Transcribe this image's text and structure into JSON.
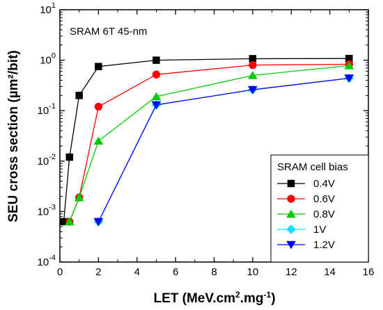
{
  "chart_data": {
    "type": "line",
    "annotation": "SRAM 6T 45-nm",
    "xlabel": {
      "main": "LET (MeV.cm",
      "sup1": "2",
      "mid": ".mg",
      "sup2": "-1",
      "end": ")"
    },
    "ylabel": {
      "main": "SEU cross section (µm²/bit)"
    },
    "xlim": [
      0,
      16
    ],
    "ylim": [
      0.0001,
      10
    ],
    "yscale": "log",
    "x_ticks": [
      0,
      2,
      4,
      6,
      8,
      10,
      12,
      14,
      16
    ],
    "x_tick_labels": [
      "0",
      "2",
      "4",
      "6",
      "8",
      "10",
      "12",
      "14",
      "16"
    ],
    "y_ticks": [
      {
        "value": 0.0001,
        "base": "10",
        "exp": "-4"
      },
      {
        "value": 0.001,
        "base": "10",
        "exp": "-3"
      },
      {
        "value": 0.01,
        "base": "10",
        "exp": "-2"
      },
      {
        "value": 0.1,
        "base": "10",
        "exp": "-1"
      },
      {
        "value": 1,
        "base": "10",
        "exp": "0"
      },
      {
        "value": 10,
        "base": "10",
        "exp": "1"
      }
    ],
    "legend": {
      "title": "SRAM cell bias",
      "position": "bottom-right"
    },
    "series": [
      {
        "name": "0.4V",
        "color": "#000000",
        "marker": "square",
        "x": [
          0.2,
          0.5,
          1,
          2,
          5,
          10,
          15
        ],
        "y": [
          0.00063,
          0.012,
          0.2,
          0.75,
          1.0,
          1.07,
          1.08
        ]
      },
      {
        "name": "0.6V",
        "color": "#ff0000",
        "marker": "circle",
        "x": [
          0.5,
          1,
          2,
          5,
          10,
          15
        ],
        "y": [
          0.00063,
          0.0019,
          0.12,
          0.52,
          0.8,
          0.83
        ]
      },
      {
        "name": "0.8V",
        "color": "#00cc00",
        "marker": "triangle-up",
        "x": [
          0.5,
          1,
          2,
          5,
          10,
          15
        ],
        "y": [
          0.00063,
          0.0019,
          0.025,
          0.19,
          0.5,
          0.78
        ]
      },
      {
        "name": "1V",
        "color": "#00e5ff",
        "marker": "diamond",
        "x": [
          2,
          5,
          10,
          15
        ],
        "y": [
          0.00063,
          0.13,
          0.26,
          0.44
        ]
      },
      {
        "name": "1.2V",
        "color": "#0000ff",
        "marker": "triangle-down",
        "x": [
          2,
          5,
          10,
          15
        ],
        "y": [
          0.00063,
          0.13,
          0.26,
          0.44
        ]
      }
    ]
  }
}
